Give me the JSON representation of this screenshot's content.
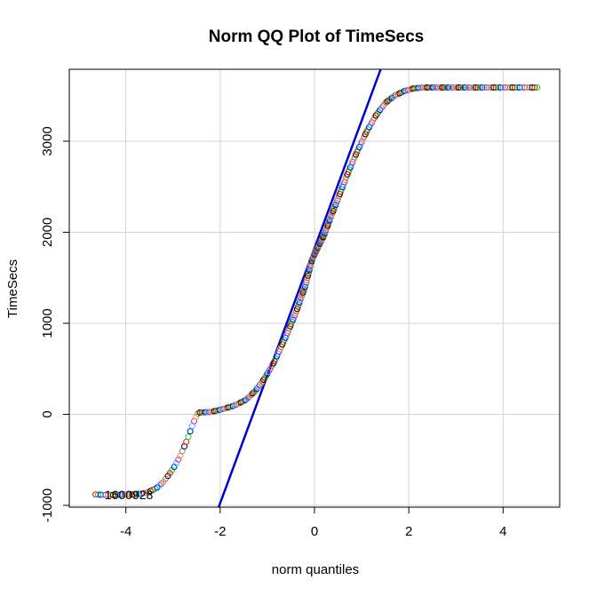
{
  "chart_data": {
    "type": "scatter",
    "title": "Norm QQ Plot of TimeSecs",
    "xlabel": "norm quantiles",
    "ylabel": "TimeSecs",
    "xlim": [
      -5.2,
      5.2
    ],
    "ylim": [
      -1020,
      3790
    ],
    "x_ticks": [
      -4,
      -2,
      0,
      2,
      4
    ],
    "y_ticks": [
      -1000,
      0,
      1000,
      2000,
      3000
    ],
    "grid": true,
    "marker": "open-circle",
    "palette": [
      "#FF0000",
      "#00DD00",
      "#0000FF",
      "#00DDDD",
      "#FF00FF",
      "#DDAA00",
      "#888888",
      "#000000"
    ],
    "series": [
      {
        "curve": [
          [
            -4.67,
            -880
          ],
          [
            -4.45,
            -885
          ],
          [
            -4.2,
            -885
          ],
          [
            -3.8,
            -880
          ],
          [
            -3.55,
            -860
          ],
          [
            -3.35,
            -810
          ],
          [
            -3.2,
            -740
          ],
          [
            -3.0,
            -600
          ],
          [
            -2.85,
            -460
          ],
          [
            -2.7,
            -280
          ],
          [
            -2.58,
            -110
          ],
          [
            -2.5,
            -10
          ],
          [
            -2.45,
            20
          ],
          [
            -2.2,
            25
          ],
          [
            -2.0,
            50
          ],
          [
            -1.7,
            95
          ],
          [
            -1.45,
            160
          ],
          [
            -1.25,
            260
          ],
          [
            -1.05,
            400
          ],
          [
            -0.85,
            580
          ],
          [
            -0.6,
            860
          ],
          [
            -0.4,
            1110
          ],
          [
            -0.2,
            1400
          ],
          [
            -0.05,
            1700
          ],
          [
            0.05,
            1810
          ],
          [
            0.2,
            1960
          ],
          [
            0.35,
            2170
          ],
          [
            0.5,
            2370
          ],
          [
            0.7,
            2640
          ],
          [
            0.9,
            2880
          ],
          [
            1.1,
            3100
          ],
          [
            1.3,
            3280
          ],
          [
            1.5,
            3420
          ],
          [
            1.7,
            3500
          ],
          [
            1.9,
            3550
          ],
          [
            2.1,
            3580
          ],
          [
            2.3,
            3590
          ],
          [
            3.0,
            3590
          ],
          [
            3.8,
            3590
          ],
          [
            4.4,
            3590
          ],
          [
            4.75,
            3590
          ]
        ],
        "point_count": 330
      }
    ],
    "reference_line": {
      "intercept": 1825,
      "slope": 1400,
      "color": "#0000CC"
    },
    "annotations": [
      {
        "text": "1600928",
        "x": -4.45,
        "y": -885
      }
    ]
  }
}
